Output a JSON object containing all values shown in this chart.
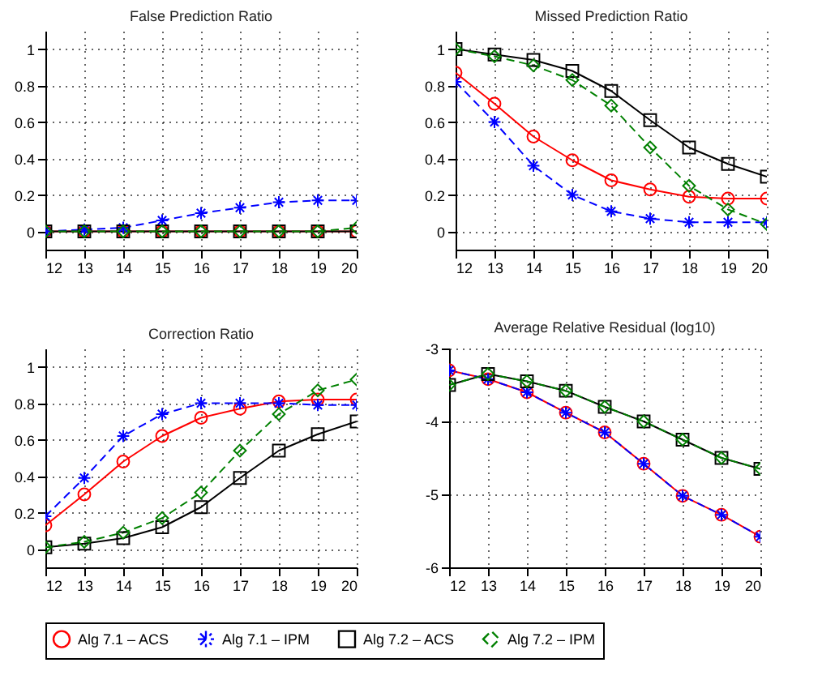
{
  "chart_data": [
    {
      "type": "line",
      "title": "False Prediction Ratio",
      "x": [
        12,
        13,
        14,
        15,
        16,
        17,
        18,
        19,
        20
      ],
      "xlim": [
        12,
        20
      ],
      "xticks": [
        12,
        13,
        14,
        15,
        16,
        17,
        18,
        19,
        20
      ],
      "ylim": [
        -0.1,
        1.1
      ],
      "yticks": [
        0,
        0.2,
        0.4,
        0.6,
        0.8,
        1
      ],
      "grid": true,
      "legend": "bottom",
      "series": [
        {
          "name": "Alg 7.1 – ACS",
          "color": "#ff0000",
          "marker": "circle",
          "line_style": "solid",
          "values": [
            0,
            0,
            0,
            0,
            0,
            0,
            0,
            0,
            0
          ]
        },
        {
          "name": "Alg 7.1 – IPM",
          "color": "#0000ff",
          "marker": "cross",
          "line_style": "dashed",
          "values": [
            0,
            0.01,
            0.02,
            0.06,
            0.1,
            0.13,
            0.16,
            0.17,
            0.17
          ]
        },
        {
          "name": "Alg 7.2 – ACS",
          "color": "#000000",
          "marker": "square",
          "line_style": "solid",
          "values": [
            0,
            0,
            0,
            0,
            0,
            0,
            0,
            0,
            0
          ]
        },
        {
          "name": "Alg 7.2 – IPM",
          "color": "#008000",
          "marker": "diamond",
          "line_style": "dashed",
          "values": [
            0,
            0,
            0,
            0,
            0,
            0,
            0,
            0,
            0.02
          ]
        }
      ]
    },
    {
      "type": "line",
      "title": "Missed Prediction Ratio",
      "x": [
        12,
        13,
        14,
        15,
        16,
        17,
        18,
        19,
        20
      ],
      "xlim": [
        12,
        20
      ],
      "xticks": [
        12,
        13,
        14,
        15,
        16,
        17,
        18,
        19,
        20
      ],
      "ylim": [
        -0.1,
        1.1
      ],
      "yticks": [
        0,
        0.2,
        0.4,
        0.6,
        0.8,
        1
      ],
      "grid": true,
      "legend": "bottom",
      "series": [
        {
          "name": "Alg 7.1 – ACS",
          "color": "#ff0000",
          "marker": "circle",
          "line_style": "solid",
          "values": [
            0.87,
            0.7,
            0.52,
            0.39,
            0.28,
            0.23,
            0.19,
            0.18,
            0.18
          ]
        },
        {
          "name": "Alg 7.1 – IPM",
          "color": "#0000ff",
          "marker": "cross",
          "line_style": "dashed",
          "values": [
            0.82,
            0.6,
            0.36,
            0.2,
            0.11,
            0.07,
            0.05,
            0.05,
            0.05
          ]
        },
        {
          "name": "Alg 7.2 – ACS",
          "color": "#000000",
          "marker": "square",
          "line_style": "solid",
          "values": [
            1,
            0.97,
            0.94,
            0.88,
            0.77,
            0.61,
            0.46,
            0.37,
            0.3
          ]
        },
        {
          "name": "Alg 7.2 – IPM",
          "color": "#008000",
          "marker": "diamond",
          "line_style": "dashed",
          "values": [
            1,
            0.96,
            0.91,
            0.83,
            0.69,
            0.46,
            0.25,
            0.12,
            0.04
          ]
        }
      ]
    },
    {
      "type": "line",
      "title": "Correction Ratio",
      "x": [
        12,
        13,
        14,
        15,
        16,
        17,
        18,
        19,
        20
      ],
      "xlim": [
        12,
        20
      ],
      "xticks": [
        12,
        13,
        14,
        15,
        16,
        17,
        18,
        19,
        20
      ],
      "ylim": [
        -0.1,
        1.1
      ],
      "yticks": [
        0,
        0.2,
        0.4,
        0.6,
        0.8,
        1
      ],
      "grid": true,
      "legend": "bottom",
      "series": [
        {
          "name": "Alg 7.1 – ACS",
          "color": "#ff0000",
          "marker": "circle",
          "line_style": "solid",
          "values": [
            0.13,
            0.3,
            0.48,
            0.62,
            0.72,
            0.77,
            0.81,
            0.82,
            0.82
          ]
        },
        {
          "name": "Alg 7.1 – IPM",
          "color": "#0000ff",
          "marker": "cross",
          "line_style": "dashed",
          "values": [
            0.18,
            0.39,
            0.62,
            0.74,
            0.8,
            0.8,
            0.8,
            0.79,
            0.79
          ]
        },
        {
          "name": "Alg 7.2 – ACS",
          "color": "#000000",
          "marker": "square",
          "line_style": "solid",
          "values": [
            0.01,
            0.03,
            0.06,
            0.12,
            0.23,
            0.39,
            0.54,
            0.63,
            0.7
          ]
        },
        {
          "name": "Alg 7.2 – IPM",
          "color": "#008000",
          "marker": "diamond",
          "line_style": "dashed",
          "values": [
            0.01,
            0.04,
            0.09,
            0.17,
            0.31,
            0.54,
            0.74,
            0.87,
            0.93
          ]
        }
      ]
    },
    {
      "type": "line",
      "title": "Average Relative Residual (log10)",
      "x": [
        12,
        13,
        14,
        15,
        16,
        17,
        18,
        19,
        20
      ],
      "xlim": [
        12,
        20
      ],
      "xticks": [
        12,
        13,
        14,
        15,
        16,
        17,
        18,
        19,
        20
      ],
      "ylim": [
        -6,
        -3
      ],
      "yticks": [
        -6,
        -5,
        -4,
        -3
      ],
      "grid": true,
      "legend": "bottom",
      "series": [
        {
          "name": "Alg 7.1 – ACS",
          "color": "#ff0000",
          "marker": "circle",
          "line_style": "solid",
          "values": [
            -3.3,
            -3.42,
            -3.6,
            -3.88,
            -4.15,
            -4.58,
            -5.02,
            -5.28,
            -5.58
          ]
        },
        {
          "name": "Alg 7.1 – IPM",
          "color": "#0000ff",
          "marker": "cross",
          "line_style": "dashed",
          "values": [
            -3.3,
            -3.42,
            -3.6,
            -3.88,
            -4.15,
            -4.58,
            -5.02,
            -5.28,
            -5.58
          ]
        },
        {
          "name": "Alg 7.2 – ACS",
          "color": "#000000",
          "marker": "square",
          "line_style": "solid",
          "values": [
            -3.5,
            -3.35,
            -3.45,
            -3.58,
            -3.8,
            -4,
            -4.25,
            -4.5,
            -4.65
          ]
        },
        {
          "name": "Alg 7.2 – IPM",
          "color": "#008000",
          "marker": "diamond",
          "line_style": "dashed",
          "values": [
            -3.5,
            -3.35,
            -3.45,
            -3.58,
            -3.8,
            -4,
            -4.25,
            -4.5,
            -4.65
          ]
        }
      ]
    }
  ]
}
